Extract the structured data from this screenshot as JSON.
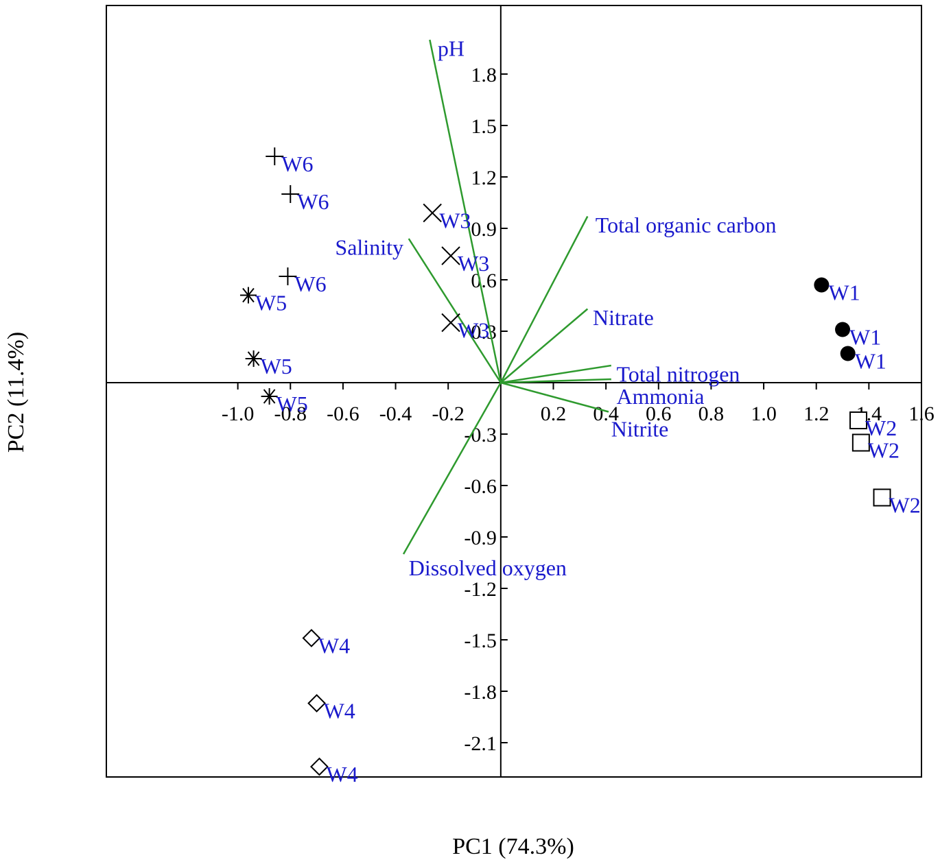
{
  "chart_data": {
    "type": "scatter",
    "subtype": "pca-biplot",
    "title": "",
    "xlabel": "PC1 (74.3%)",
    "ylabel": "PC2 (11.4%)",
    "xlim": [
      -1.5,
      1.6
    ],
    "ylim": [
      -2.3,
      2.2
    ],
    "x_ticks": [
      "-1.0",
      "-0.8",
      "-0.6",
      "-0.4",
      "-0.2",
      "0.2",
      "0.4",
      "0.6",
      "0.8",
      "1.0",
      "1.2",
      "1.4",
      "1.6"
    ],
    "x_tick_values": [
      -1.0,
      -0.8,
      -0.6,
      -0.4,
      -0.2,
      0.2,
      0.4,
      0.6,
      0.8,
      1.0,
      1.2,
      1.4,
      1.6
    ],
    "y_ticks": [
      "1.8",
      "1.5",
      "1.2",
      "0.9",
      "0.6",
      "0.3",
      "-0.3",
      "-0.6",
      "-0.9",
      "-1.2",
      "-1.5",
      "-1.8",
      "-2.1"
    ],
    "y_tick_values": [
      1.8,
      1.5,
      1.2,
      0.9,
      0.6,
      0.3,
      -0.3,
      -0.6,
      -0.9,
      -1.2,
      -1.5,
      -1.8,
      -2.1
    ],
    "grid": false,
    "colors": {
      "vector": "#2e9a2e",
      "label": "#1a1acc",
      "axis": "#000000"
    },
    "series": [
      {
        "name": "W1",
        "marker": "filled-circle",
        "points": [
          [
            1.22,
            0.57
          ],
          [
            1.3,
            0.31
          ],
          [
            1.32,
            0.17
          ]
        ]
      },
      {
        "name": "W2",
        "marker": "square",
        "points": [
          [
            1.36,
            -0.22
          ],
          [
            1.37,
            -0.35
          ],
          [
            1.45,
            -0.67
          ]
        ]
      },
      {
        "name": "W3",
        "marker": "x-cross",
        "points": [
          [
            -0.26,
            0.99
          ],
          [
            -0.19,
            0.74
          ],
          [
            -0.19,
            0.35
          ]
        ]
      },
      {
        "name": "W4",
        "marker": "diamond",
        "points": [
          [
            -0.72,
            -1.49
          ],
          [
            -0.7,
            -1.87
          ],
          [
            -0.69,
            -2.24
          ]
        ]
      },
      {
        "name": "W5",
        "marker": "asterisk",
        "points": [
          [
            -0.96,
            0.51
          ],
          [
            -0.94,
            0.14
          ],
          [
            -0.88,
            -0.08
          ]
        ]
      },
      {
        "name": "W6",
        "marker": "plus",
        "points": [
          [
            -0.86,
            1.32
          ],
          [
            -0.8,
            1.1
          ],
          [
            -0.81,
            0.62
          ]
        ]
      }
    ],
    "vectors": [
      {
        "name": "pH",
        "end": [
          -0.27,
          2.0
        ],
        "label_pos": [
          -0.24,
          1.95
        ]
      },
      {
        "name": "Total organic carbon",
        "end": [
          0.33,
          0.97
        ],
        "label_pos": [
          0.36,
          0.92
        ]
      },
      {
        "name": "Salinity",
        "end": [
          -0.35,
          0.84
        ],
        "label_pos": [
          -0.63,
          0.79
        ]
      },
      {
        "name": "Nitrate",
        "end": [
          0.33,
          0.43
        ],
        "label_pos": [
          0.35,
          0.38
        ]
      },
      {
        "name": "Total nitrogen",
        "end": [
          0.42,
          0.1
        ],
        "label_pos": [
          0.44,
          0.05
        ]
      },
      {
        "name": "Ammonia",
        "end": [
          0.42,
          0.02
        ],
        "label_pos": [
          0.44,
          -0.08
        ]
      },
      {
        "name": "Nitrite",
        "end": [
          0.41,
          -0.17
        ],
        "label_pos": [
          0.42,
          -0.27
        ]
      },
      {
        "name": "Dissolved oxygen",
        "end": [
          -0.37,
          -1.0
        ],
        "label_pos": [
          -0.35,
          -1.08
        ]
      }
    ]
  }
}
